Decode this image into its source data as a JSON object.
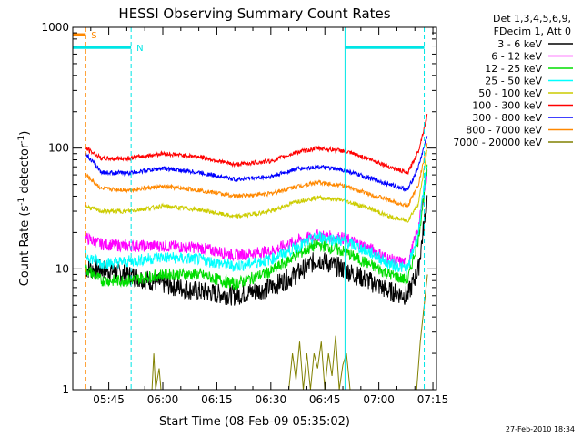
{
  "chart_data": {
    "type": "line",
    "title": "HESSI Observing Summary Count Rates",
    "xlabel": "Start Time (08-Feb-09 05:35:02)",
    "ylabel_main": "Count Rate (s",
    "ylabel_sup1": "-1",
    "ylabel_mid": " detector",
    "ylabel_sup2": "-1",
    "ylabel_end": ")",
    "y_scale": "log",
    "ylim": [
      1,
      1000
    ],
    "xlim_minutes": [
      0,
      101
    ],
    "x_ticks": [
      {
        "minute": 10,
        "label": "05:45"
      },
      {
        "minute": 25,
        "label": "06:00"
      },
      {
        "minute": 40,
        "label": "06:15"
      },
      {
        "minute": 55,
        "label": "06:30"
      },
      {
        "minute": 70,
        "label": "06:45"
      },
      {
        "minute": 85,
        "label": "07:00"
      },
      {
        "minute": 100,
        "label": "07:15"
      }
    ],
    "y_ticks": [
      {
        "value": 1,
        "label": "1"
      },
      {
        "value": 10,
        "label": "10"
      },
      {
        "value": 100,
        "label": "100"
      },
      {
        "value": 1000,
        "label": "1000"
      }
    ],
    "legend_header": [
      "Det 1,3,4,5,6,9,",
      "FDecim 1, Att 0"
    ],
    "legend_placement": "right",
    "series": [
      {
        "name": "3 - 6 keV",
        "color": "#000000",
        "points": [
          [
            3.6,
            10
          ],
          [
            8,
            10
          ],
          [
            15,
            9
          ],
          [
            25,
            7.5
          ],
          [
            35,
            6.5
          ],
          [
            45,
            6
          ],
          [
            55,
            7
          ],
          [
            62,
            9
          ],
          [
            68,
            12
          ],
          [
            75,
            10
          ],
          [
            82,
            8
          ],
          [
            88,
            6.5
          ],
          [
            93,
            6
          ],
          [
            96,
            10
          ],
          [
            98.5,
            40
          ]
        ]
      },
      {
        "name": "6 - 12 keV",
        "color": "#ff00ff",
        "points": [
          [
            3.6,
            18
          ],
          [
            8,
            16
          ],
          [
            15,
            15.5
          ],
          [
            25,
            15.5
          ],
          [
            35,
            15
          ],
          [
            45,
            13
          ],
          [
            55,
            14
          ],
          [
            62,
            17
          ],
          [
            68,
            19
          ],
          [
            75,
            18
          ],
          [
            82,
            15
          ],
          [
            88,
            12
          ],
          [
            93,
            11
          ],
          [
            96,
            22
          ],
          [
            98.5,
            65
          ]
        ]
      },
      {
        "name": "12 - 25 keV",
        "color": "#00dd00",
        "points": [
          [
            3.6,
            10
          ],
          [
            8,
            8
          ],
          [
            15,
            8
          ],
          [
            25,
            9
          ],
          [
            35,
            9
          ],
          [
            45,
            7.5
          ],
          [
            55,
            9.5
          ],
          [
            62,
            13
          ],
          [
            68,
            16
          ],
          [
            75,
            14
          ],
          [
            82,
            11
          ],
          [
            88,
            9
          ],
          [
            93,
            8
          ],
          [
            96,
            18
          ],
          [
            98.5,
            70
          ]
        ]
      },
      {
        "name": "25 - 50 keV",
        "color": "#00ffff",
        "points": [
          [
            3.6,
            13
          ],
          [
            8,
            11
          ],
          [
            15,
            11.5
          ],
          [
            25,
            12.5
          ],
          [
            35,
            12
          ],
          [
            45,
            10.5
          ],
          [
            55,
            12
          ],
          [
            62,
            15
          ],
          [
            68,
            18.5
          ],
          [
            75,
            17
          ],
          [
            82,
            14
          ],
          [
            88,
            11
          ],
          [
            93,
            10
          ],
          [
            96,
            20
          ],
          [
            98.5,
            80
          ]
        ]
      },
      {
        "name": "50 - 100 keV",
        "color": "#cccc00",
        "points": [
          [
            3.6,
            33
          ],
          [
            8,
            30
          ],
          [
            15,
            30
          ],
          [
            25,
            33
          ],
          [
            35,
            31
          ],
          [
            45,
            27
          ],
          [
            55,
            30
          ],
          [
            62,
            36
          ],
          [
            68,
            39
          ],
          [
            75,
            37
          ],
          [
            82,
            32
          ],
          [
            88,
            27
          ],
          [
            93,
            25
          ],
          [
            96,
            35
          ],
          [
            98.5,
            100
          ]
        ]
      },
      {
        "name": "100 - 300 keV",
        "color": "#ff0000",
        "points": [
          [
            3.6,
            100
          ],
          [
            8,
            82
          ],
          [
            15,
            82
          ],
          [
            25,
            90
          ],
          [
            35,
            85
          ],
          [
            45,
            73
          ],
          [
            55,
            78
          ],
          [
            62,
            92
          ],
          [
            68,
            100
          ],
          [
            75,
            95
          ],
          [
            82,
            82
          ],
          [
            88,
            70
          ],
          [
            93,
            62
          ],
          [
            96,
            95
          ],
          [
            98.5,
            190
          ]
        ]
      },
      {
        "name": "300 - 800 keV",
        "color": "#0000ff",
        "points": [
          [
            3.6,
            90
          ],
          [
            8,
            63
          ],
          [
            15,
            62
          ],
          [
            25,
            68
          ],
          [
            35,
            63
          ],
          [
            45,
            55
          ],
          [
            55,
            58
          ],
          [
            62,
            67
          ],
          [
            68,
            70
          ],
          [
            75,
            66
          ],
          [
            82,
            57
          ],
          [
            88,
            50
          ],
          [
            93,
            45
          ],
          [
            96,
            70
          ],
          [
            98.5,
            130
          ]
        ]
      },
      {
        "name": "800 - 7000 keV",
        "color": "#ff8800",
        "points": [
          [
            3.6,
            60
          ],
          [
            8,
            46
          ],
          [
            15,
            45
          ],
          [
            25,
            48
          ],
          [
            35,
            45
          ],
          [
            45,
            40
          ],
          [
            55,
            42
          ],
          [
            62,
            48
          ],
          [
            68,
            52
          ],
          [
            75,
            49
          ],
          [
            82,
            42
          ],
          [
            88,
            37
          ],
          [
            93,
            33
          ],
          [
            96,
            50
          ],
          [
            98.5,
            110
          ]
        ]
      },
      {
        "name": "7000 - 20000 keV",
        "color": "#808000",
        "points": [
          [
            2.5,
            1
          ],
          [
            3.5,
            1
          ],
          [
            4.5,
            1
          ],
          [
            22,
            1
          ],
          [
            22.5,
            2
          ],
          [
            23,
            1
          ],
          [
            24,
            1.5
          ],
          [
            24.5,
            1
          ],
          [
            55,
            1
          ],
          [
            60,
            1
          ],
          [
            61,
            2
          ],
          [
            62,
            1.2
          ],
          [
            63,
            2.5
          ],
          [
            64,
            1
          ],
          [
            65,
            2
          ],
          [
            66,
            1
          ],
          [
            67,
            2
          ],
          [
            68,
            1.5
          ],
          [
            69,
            2.5
          ],
          [
            70,
            1
          ],
          [
            71,
            2
          ],
          [
            72,
            1.3
          ],
          [
            73,
            2.8
          ],
          [
            74,
            1
          ],
          [
            75,
            1.6
          ],
          [
            76,
            2
          ],
          [
            77,
            1
          ],
          [
            95.5,
            1
          ],
          [
            96.5,
            2.5
          ],
          [
            98.5,
            9
          ]
        ]
      }
    ],
    "markers": [
      {
        "label": "S",
        "color": "#ff8800",
        "start": 0,
        "end": 3.6,
        "y_level": 870,
        "dashed_at": [
          3.6
        ]
      },
      {
        "label": "N",
        "color": "#00e5e5",
        "start": 0,
        "end": 16.2,
        "y_level": 680,
        "dashed_at": [
          16.2
        ]
      },
      {
        "label": "",
        "color": "#00e5e5",
        "start": 75.6,
        "end": 97.6,
        "y_level": 680,
        "dashed_at": [
          97.6
        ]
      }
    ],
    "cyan_solid_verticals": [
      0,
      75.6
    ],
    "grid": false
  },
  "footer": {
    "timestamp": "27-Feb-2010 18:34"
  }
}
